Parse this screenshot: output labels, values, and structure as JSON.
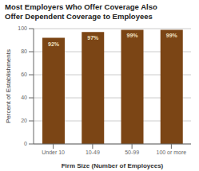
{
  "chart_data": {
    "type": "bar",
    "title": "Most Employers Who Offer Coverage Also\nOffer Dependent Coverage to Employees",
    "categories": [
      "Under 10",
      "10-49",
      "50-99",
      "100 or more"
    ],
    "values": [
      92,
      97,
      99,
      99
    ],
    "value_labels": [
      "92%",
      "97%",
      "99%",
      "99%"
    ],
    "data_labels": true,
    "color": "#7B4515",
    "xlabel": "Firm Size (Number of Employees)",
    "ylabel": "Percent of Establishments",
    "ylim": [
      0,
      100
    ],
    "yticks": [
      0,
      20,
      40,
      60,
      80,
      100
    ],
    "grid": true
  }
}
